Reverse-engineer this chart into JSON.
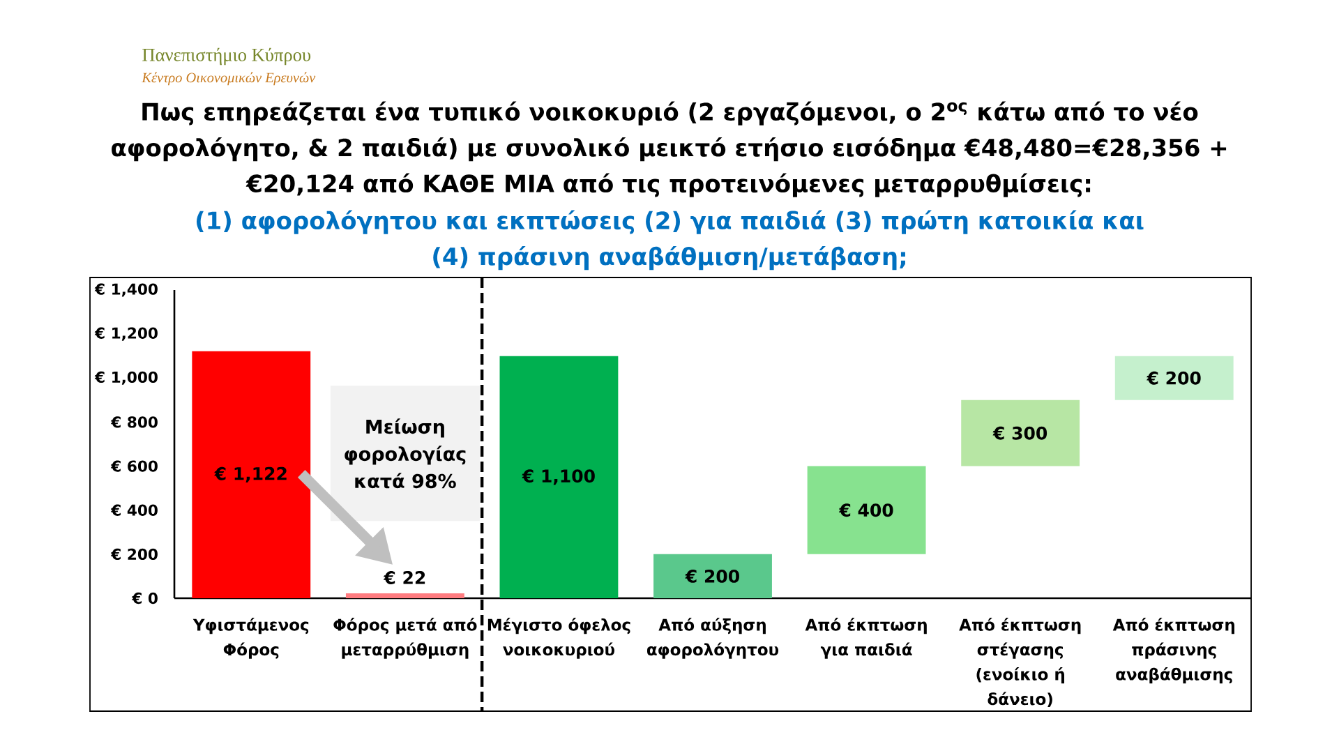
{
  "chart_data": {
    "type": "bar",
    "title": "Πως επηρεάζεται ένα τυπικό νοικοκυριό (2 εργαζόμενοι, ο 2$^{ος}$ κάτω από το νέο αφορολόγητο, & 2 παιδιά) με συνολικό μεικτό ετήσιο εισόδημα €48,480=€28,356 + €20,124 από ΚΑΘΕ ΜΙΑ από τις προτεινόμενες μεταρρυθμίσεις:",
    "subtitle": "(1) αφορολόγητου και εκπτώσεις (2) για παιδιά (3) πρώτη κατοικία και (4) πράσινη αναβάθμιση/μετάβαση;",
    "categories": [
      "Υφιστάμενος Φόρος",
      "Φόρος μετά από μεταρρύθμιση",
      "Μέγιστο όφελος νοικοκυριού",
      "Από αύξηση αφορολόγητου",
      "Από έκπτωση για παιδιά",
      "Από έκπτωση στέγασης (ενοίκιο ή δάνειο)",
      "Από έκπτωση πράσινης αναβάθμισης"
    ],
    "values": [
      1122,
      22,
      1100,
      200,
      400,
      300,
      200
    ],
    "base": [
      0,
      0,
      0,
      0,
      200,
      600,
      900
    ],
    "colors": [
      "#ff0000",
      "#ff7c80",
      "#00b050",
      "#5ac88c",
      "#87e28f",
      "#b7e6a4",
      "#c5f0cd"
    ],
    "value_labels": [
      "€ 1,122",
      "€ 22",
      "€ 1,100",
      "€ 200",
      "€ 400",
      "€ 300",
      "€ 200"
    ],
    "ylim": [
      0,
      1400
    ],
    "yticks": [
      {
        "value": 0,
        "label": "€ 0"
      },
      {
        "value": 200,
        "label": "€ 200"
      },
      {
        "value": 400,
        "label": "€ 400"
      },
      {
        "value": 600,
        "label": "€ 600"
      },
      {
        "value": 800,
        "label": "€ 800"
      },
      {
        "value": 1000,
        "label": "€ 1,000"
      },
      {
        "value": 1200,
        "label": "€ 1,200"
      },
      {
        "value": 1400,
        "label": "€ 1,400"
      }
    ],
    "annotations": [
      "Πανεπιστήμιο Κύπρου",
      "Κέντρο Οικονομικών Ερευνών",
      "Μείωση φορολογίας κατά 98%"
    ]
  }
}
